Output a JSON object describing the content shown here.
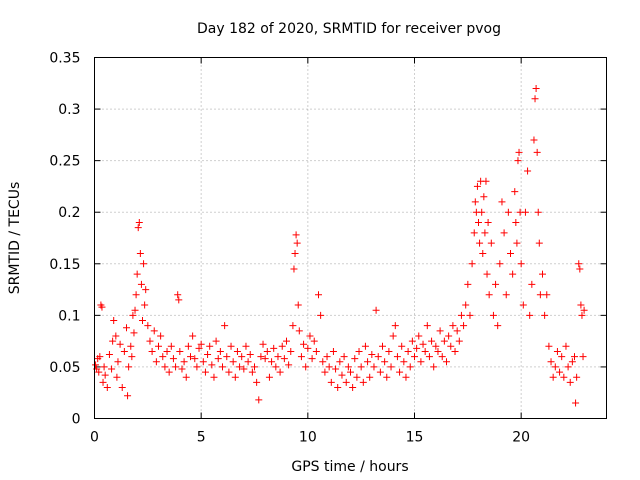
{
  "chart_data": {
    "type": "scatter",
    "title": "Day 182 of 2020, SRMTID for receiver pvog",
    "xlabel": "GPS time / hours",
    "ylabel": "SRMTID / TECUs",
    "xlim": [
      0,
      24
    ],
    "ylim": [
      0,
      0.35
    ],
    "grid": true,
    "marker": "+",
    "color": "#ff0000",
    "x_ticks": [
      0,
      5,
      10,
      15,
      20
    ],
    "x_tick_labels": [
      "0",
      "5",
      "10",
      "15",
      "20"
    ],
    "y_ticks": [
      0,
      0.05,
      0.1,
      0.15,
      0.2,
      0.25,
      0.3,
      0.35
    ],
    "y_tick_labels": [
      "0",
      "0.05",
      "0.1",
      "0.15",
      "0.2",
      "0.25",
      "0.3",
      "0.35"
    ],
    "series": [
      {
        "name": "SRMTID",
        "points": [
          [
            0.05,
            0.052
          ],
          [
            0.1,
            0.048
          ],
          [
            0.15,
            0.058
          ],
          [
            0.2,
            0.045
          ],
          [
            0.25,
            0.06
          ],
          [
            0.3,
            0.11
          ],
          [
            0.35,
            0.108
          ],
          [
            0.4,
            0.035
          ],
          [
            0.45,
            0.05
          ],
          [
            0.5,
            0.042
          ],
          [
            0.6,
            0.03
          ],
          [
            0.7,
            0.062
          ],
          [
            0.8,
            0.048
          ],
          [
            0.85,
            0.075
          ],
          [
            0.9,
            0.095
          ],
          [
            1.0,
            0.08
          ],
          [
            1.05,
            0.04
          ],
          [
            1.1,
            0.055
          ],
          [
            1.2,
            0.072
          ],
          [
            1.3,
            0.03
          ],
          [
            1.4,
            0.065
          ],
          [
            1.5,
            0.088
          ],
          [
            1.55,
            0.022
          ],
          [
            1.6,
            0.05
          ],
          [
            1.7,
            0.07
          ],
          [
            1.75,
            0.06
          ],
          [
            1.8,
            0.1
          ],
          [
            1.85,
            0.083
          ],
          [
            1.9,
            0.105
          ],
          [
            1.95,
            0.12
          ],
          [
            2.0,
            0.14
          ],
          [
            2.05,
            0.185
          ],
          [
            2.1,
            0.19
          ],
          [
            2.15,
            0.16
          ],
          [
            2.2,
            0.13
          ],
          [
            2.25,
            0.095
          ],
          [
            2.3,
            0.15
          ],
          [
            2.35,
            0.11
          ],
          [
            2.4,
            0.125
          ],
          [
            2.5,
            0.09
          ],
          [
            2.6,
            0.075
          ],
          [
            2.7,
            0.065
          ],
          [
            2.8,
            0.085
          ],
          [
            2.9,
            0.055
          ],
          [
            3.0,
            0.07
          ],
          [
            3.1,
            0.08
          ],
          [
            3.2,
            0.06
          ],
          [
            3.3,
            0.05
          ],
          [
            3.4,
            0.065
          ],
          [
            3.5,
            0.045
          ],
          [
            3.6,
            0.07
          ],
          [
            3.7,
            0.058
          ],
          [
            3.8,
            0.05
          ],
          [
            3.9,
            0.12
          ],
          [
            3.95,
            0.115
          ],
          [
            4.0,
            0.065
          ],
          [
            4.1,
            0.048
          ],
          [
            4.2,
            0.055
          ],
          [
            4.3,
            0.04
          ],
          [
            4.4,
            0.07
          ],
          [
            4.5,
            0.06
          ],
          [
            4.6,
            0.08
          ],
          [
            4.7,
            0.058
          ],
          [
            4.8,
            0.05
          ],
          [
            4.9,
            0.068
          ],
          [
            5.0,
            0.072
          ],
          [
            5.1,
            0.055
          ],
          [
            5.2,
            0.045
          ],
          [
            5.3,
            0.062
          ],
          [
            5.4,
            0.07
          ],
          [
            5.5,
            0.052
          ],
          [
            5.6,
            0.04
          ],
          [
            5.7,
            0.075
          ],
          [
            5.8,
            0.058
          ],
          [
            5.9,
            0.065
          ],
          [
            6.0,
            0.05
          ],
          [
            6.1,
            0.09
          ],
          [
            6.2,
            0.06
          ],
          [
            6.3,
            0.045
          ],
          [
            6.4,
            0.07
          ],
          [
            6.5,
            0.055
          ],
          [
            6.6,
            0.04
          ],
          [
            6.7,
            0.065
          ],
          [
            6.8,
            0.05
          ],
          [
            6.9,
            0.06
          ],
          [
            7.0,
            0.048
          ],
          [
            7.1,
            0.07
          ],
          [
            7.2,
            0.055
          ],
          [
            7.3,
            0.062
          ],
          [
            7.4,
            0.045
          ],
          [
            7.5,
            0.05
          ],
          [
            7.6,
            0.035
          ],
          [
            7.7,
            0.018
          ],
          [
            7.8,
            0.06
          ],
          [
            7.9,
            0.072
          ],
          [
            8.0,
            0.058
          ],
          [
            8.1,
            0.065
          ],
          [
            8.2,
            0.04
          ],
          [
            8.3,
            0.055
          ],
          [
            8.4,
            0.068
          ],
          [
            8.5,
            0.05
          ],
          [
            8.6,
            0.06
          ],
          [
            8.7,
            0.045
          ],
          [
            8.8,
            0.07
          ],
          [
            8.9,
            0.058
          ],
          [
            9.0,
            0.075
          ],
          [
            9.1,
            0.052
          ],
          [
            9.2,
            0.065
          ],
          [
            9.3,
            0.09
          ],
          [
            9.35,
            0.145
          ],
          [
            9.4,
            0.16
          ],
          [
            9.45,
            0.178
          ],
          [
            9.5,
            0.17
          ],
          [
            9.55,
            0.11
          ],
          [
            9.6,
            0.085
          ],
          [
            9.7,
            0.06
          ],
          [
            9.8,
            0.072
          ],
          [
            9.9,
            0.05
          ],
          [
            10.0,
            0.068
          ],
          [
            10.1,
            0.08
          ],
          [
            10.2,
            0.058
          ],
          [
            10.3,
            0.075
          ],
          [
            10.4,
            0.065
          ],
          [
            10.5,
            0.12
          ],
          [
            10.6,
            0.1
          ],
          [
            10.7,
            0.055
          ],
          [
            10.8,
            0.045
          ],
          [
            10.9,
            0.06
          ],
          [
            11.0,
            0.05
          ],
          [
            11.1,
            0.035
          ],
          [
            11.2,
            0.065
          ],
          [
            11.3,
            0.048
          ],
          [
            11.4,
            0.03
          ],
          [
            11.5,
            0.055
          ],
          [
            11.6,
            0.042
          ],
          [
            11.7,
            0.06
          ],
          [
            11.8,
            0.035
          ],
          [
            11.9,
            0.05
          ],
          [
            12.0,
            0.045
          ],
          [
            12.1,
            0.03
          ],
          [
            12.2,
            0.058
          ],
          [
            12.3,
            0.04
          ],
          [
            12.4,
            0.065
          ],
          [
            12.5,
            0.05
          ],
          [
            12.6,
            0.035
          ],
          [
            12.7,
            0.07
          ],
          [
            12.8,
            0.055
          ],
          [
            12.9,
            0.04
          ],
          [
            13.0,
            0.062
          ],
          [
            13.1,
            0.05
          ],
          [
            13.2,
            0.105
          ],
          [
            13.3,
            0.06
          ],
          [
            13.4,
            0.045
          ],
          [
            13.5,
            0.07
          ],
          [
            13.6,
            0.055
          ],
          [
            13.7,
            0.04
          ],
          [
            13.8,
            0.065
          ],
          [
            13.9,
            0.05
          ],
          [
            14.0,
            0.08
          ],
          [
            14.1,
            0.09
          ],
          [
            14.2,
            0.06
          ],
          [
            14.3,
            0.045
          ],
          [
            14.4,
            0.07
          ],
          [
            14.5,
            0.055
          ],
          [
            14.6,
            0.04
          ],
          [
            14.7,
            0.065
          ],
          [
            14.8,
            0.05
          ],
          [
            14.9,
            0.075
          ],
          [
            15.0,
            0.06
          ],
          [
            15.1,
            0.068
          ],
          [
            15.2,
            0.08
          ],
          [
            15.3,
            0.055
          ],
          [
            15.4,
            0.072
          ],
          [
            15.5,
            0.065
          ],
          [
            15.6,
            0.09
          ],
          [
            15.7,
            0.06
          ],
          [
            15.8,
            0.075
          ],
          [
            15.9,
            0.05
          ],
          [
            16.0,
            0.07
          ],
          [
            16.1,
            0.065
          ],
          [
            16.2,
            0.085
          ],
          [
            16.3,
            0.06
          ],
          [
            16.4,
            0.075
          ],
          [
            16.5,
            0.055
          ],
          [
            16.6,
            0.08
          ],
          [
            16.7,
            0.07
          ],
          [
            16.8,
            0.09
          ],
          [
            16.9,
            0.065
          ],
          [
            17.0,
            0.085
          ],
          [
            17.1,
            0.075
          ],
          [
            17.2,
            0.1
          ],
          [
            17.3,
            0.09
          ],
          [
            17.4,
            0.11
          ],
          [
            17.5,
            0.13
          ],
          [
            17.6,
            0.1
          ],
          [
            17.7,
            0.15
          ],
          [
            17.8,
            0.18
          ],
          [
            17.85,
            0.21
          ],
          [
            17.9,
            0.2
          ],
          [
            17.95,
            0.225
          ],
          [
            18.0,
            0.19
          ],
          [
            18.05,
            0.17
          ],
          [
            18.1,
            0.23
          ],
          [
            18.15,
            0.2
          ],
          [
            18.2,
            0.16
          ],
          [
            18.25,
            0.215
          ],
          [
            18.3,
            0.18
          ],
          [
            18.35,
            0.23
          ],
          [
            18.4,
            0.14
          ],
          [
            18.45,
            0.19
          ],
          [
            18.5,
            0.12
          ],
          [
            18.6,
            0.17
          ],
          [
            18.7,
            0.1
          ],
          [
            18.8,
            0.13
          ],
          [
            18.9,
            0.09
          ],
          [
            19.0,
            0.15
          ],
          [
            19.1,
            0.21
          ],
          [
            19.2,
            0.18
          ],
          [
            19.3,
            0.12
          ],
          [
            19.4,
            0.2
          ],
          [
            19.5,
            0.16
          ],
          [
            19.6,
            0.14
          ],
          [
            19.7,
            0.22
          ],
          [
            19.75,
            0.19
          ],
          [
            19.8,
            0.17
          ],
          [
            19.85,
            0.25
          ],
          [
            19.9,
            0.258
          ],
          [
            19.95,
            0.2
          ],
          [
            20.0,
            0.15
          ],
          [
            20.1,
            0.11
          ],
          [
            20.2,
            0.2
          ],
          [
            20.3,
            0.24
          ],
          [
            20.4,
            0.1
          ],
          [
            20.5,
            0.13
          ],
          [
            20.6,
            0.27
          ],
          [
            20.65,
            0.31
          ],
          [
            20.7,
            0.32
          ],
          [
            20.75,
            0.258
          ],
          [
            20.8,
            0.2
          ],
          [
            20.85,
            0.17
          ],
          [
            20.9,
            0.12
          ],
          [
            21.0,
            0.14
          ],
          [
            21.1,
            0.1
          ],
          [
            21.2,
            0.12
          ],
          [
            21.3,
            0.07
          ],
          [
            21.4,
            0.055
          ],
          [
            21.5,
            0.04
          ],
          [
            21.6,
            0.05
          ],
          [
            21.7,
            0.065
          ],
          [
            21.8,
            0.045
          ],
          [
            21.9,
            0.06
          ],
          [
            22.0,
            0.04
          ],
          [
            22.1,
            0.07
          ],
          [
            22.2,
            0.05
          ],
          [
            22.3,
            0.035
          ],
          [
            22.4,
            0.055
          ],
          [
            22.5,
            0.06
          ],
          [
            22.55,
            0.015
          ],
          [
            22.6,
            0.04
          ],
          [
            22.7,
            0.15
          ],
          [
            22.75,
            0.145
          ],
          [
            22.8,
            0.11
          ],
          [
            22.85,
            0.1
          ],
          [
            22.9,
            0.06
          ],
          [
            22.95,
            0.105
          ]
        ]
      }
    ]
  }
}
